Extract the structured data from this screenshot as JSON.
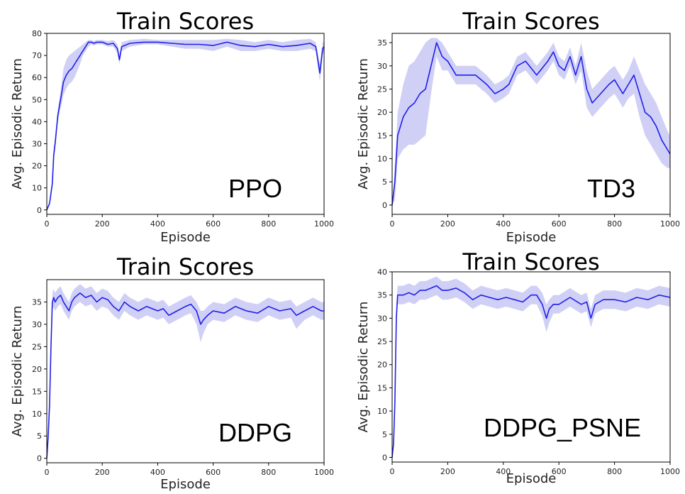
{
  "chart_data": [
    {
      "type": "line",
      "title": "Train Scores",
      "xlabel": "Episode",
      "ylabel": "Avg. Episodic Return",
      "annotation": "PPO",
      "xlim": [
        0,
        1000
      ],
      "ylim": [
        -2,
        80
      ],
      "xticks": [
        0,
        200,
        400,
        600,
        800,
        1000
      ],
      "yticks": [
        0,
        10,
        20,
        30,
        40,
        50,
        60,
        70,
        80
      ],
      "line_color": "#1f1fe8",
      "band_color": "#c8c8f4",
      "series": [
        {
          "x": [
            0,
            10,
            20,
            25,
            30,
            40,
            50,
            60,
            70,
            80,
            90,
            100,
            110,
            120,
            130,
            140,
            150,
            160,
            170,
            180,
            200,
            220,
            240,
            255,
            262,
            270,
            300,
            350,
            400,
            450,
            500,
            550,
            600,
            650,
            700,
            750,
            800,
            850,
            900,
            950,
            970,
            985,
            995,
            1000
          ],
          "values": [
            0,
            3,
            12,
            25,
            30,
            43,
            50,
            58,
            61,
            63,
            64,
            66,
            68,
            70,
            72,
            74,
            76,
            76,
            75.5,
            76,
            76,
            75,
            75.5,
            73,
            68,
            74,
            75.5,
            76,
            76,
            75.5,
            75,
            75,
            74.5,
            76,
            74.5,
            74,
            75,
            74,
            74.5,
            75.5,
            74,
            62,
            73,
            74
          ],
          "lower": [
            0,
            2,
            10,
            22,
            27,
            40,
            46,
            52,
            55,
            57,
            58,
            60,
            63,
            66,
            70,
            72,
            74,
            75,
            74.5,
            75,
            75,
            74,
            74,
            71,
            66,
            72,
            74,
            75,
            75,
            74,
            73,
            73,
            72,
            74,
            72,
            72,
            73,
            72,
            72,
            73,
            72,
            58,
            70,
            72
          ],
          "upper": [
            0,
            4,
            14,
            28,
            33,
            46,
            54,
            64,
            68,
            70,
            71,
            72,
            73,
            74,
            75,
            76,
            77,
            77,
            76.5,
            77,
            77,
            76.5,
            77,
            75,
            70,
            76,
            77,
            77.5,
            77,
            77,
            77,
            77,
            77,
            77.5,
            77,
            76,
            77,
            76,
            77,
            77.5,
            76,
            66,
            76,
            76
          ]
        }
      ]
    },
    {
      "type": "line",
      "title": "Train Scores",
      "xlabel": "Episode",
      "ylabel": "Avg. Episodic Return",
      "annotation": "TD3",
      "xlim": [
        0,
        1000
      ],
      "ylim": [
        -2,
        37
      ],
      "xticks": [
        0,
        200,
        400,
        600,
        800,
        1000
      ],
      "yticks": [
        0,
        5,
        10,
        15,
        20,
        25,
        30,
        35
      ],
      "line_color": "#1f1fe8",
      "band_color": "#c8c8f4",
      "series": [
        {
          "x": [
            0,
            10,
            20,
            40,
            60,
            80,
            100,
            120,
            140,
            160,
            180,
            200,
            230,
            260,
            300,
            340,
            370,
            400,
            420,
            450,
            480,
            520,
            560,
            580,
            600,
            620,
            640,
            660,
            680,
            700,
            720,
            750,
            780,
            800,
            830,
            850,
            870,
            890,
            910,
            930,
            950,
            970,
            990,
            1000
          ],
          "values": [
            0,
            5,
            15,
            19,
            21,
            22,
            24,
            25,
            30,
            35,
            32,
            31,
            28,
            28,
            28,
            26,
            24,
            25,
            26,
            30,
            31,
            28,
            31,
            33,
            30,
            29,
            32,
            28,
            32,
            25,
            22,
            24,
            26,
            27,
            24,
            26,
            28,
            24,
            20,
            19,
            17,
            14,
            12,
            11
          ],
          "lower": [
            0,
            1,
            10,
            12,
            13,
            13,
            14,
            15,
            24,
            32,
            29,
            29,
            26,
            26,
            26,
            24,
            22,
            23,
            24,
            28,
            29,
            26,
            29,
            31,
            28,
            27,
            30,
            26,
            29,
            21,
            19,
            21,
            23,
            24,
            21,
            23,
            24,
            19,
            15,
            13,
            11,
            9,
            8,
            8
          ],
          "upper": [
            0,
            9,
            20,
            26,
            30,
            31,
            33,
            35,
            36,
            36,
            35,
            33,
            30,
            30,
            30,
            28,
            26,
            27,
            28,
            32,
            33,
            30,
            33,
            35,
            32,
            31,
            34,
            30,
            35,
            29,
            25,
            27,
            29,
            30,
            27,
            29,
            32,
            29,
            26,
            24,
            22,
            19,
            16,
            15
          ]
        }
      ]
    },
    {
      "type": "line",
      "title": "Train Scores",
      "xlabel": "Episode",
      "ylabel": "Avg. Episodic Return",
      "annotation": "DDPG",
      "xlim": [
        0,
        1000
      ],
      "ylim": [
        -1,
        40
      ],
      "xticks": [
        0,
        200,
        400,
        600,
        800,
        1000
      ],
      "yticks": [
        0,
        5,
        10,
        15,
        20,
        25,
        30,
        35
      ],
      "line_color": "#1f1fe8",
      "band_color": "#c8c8f4",
      "series": [
        {
          "x": [
            0,
            5,
            10,
            15,
            20,
            25,
            30,
            40,
            50,
            60,
            70,
            80,
            90,
            100,
            120,
            140,
            160,
            180,
            200,
            220,
            240,
            260,
            280,
            300,
            330,
            360,
            400,
            420,
            440,
            470,
            500,
            520,
            540,
            555,
            565,
            580,
            600,
            640,
            680,
            720,
            760,
            800,
            840,
            880,
            900,
            930,
            960,
            990,
            1000
          ],
          "values": [
            0,
            5,
            12,
            25,
            35,
            36,
            35,
            36,
            36.5,
            35,
            34,
            33,
            35,
            36,
            37,
            36,
            36.5,
            35,
            36,
            35.5,
            34,
            33,
            35,
            34,
            33,
            34,
            33,
            33.5,
            32,
            33,
            34,
            34.5,
            33,
            30,
            31,
            32,
            33,
            32.5,
            34,
            33,
            32.5,
            34,
            33,
            33.5,
            32,
            33,
            34,
            33,
            33
          ],
          "lower": [
            0,
            4,
            10,
            22,
            33,
            34,
            33,
            34,
            34.5,
            33,
            32,
            31,
            33,
            34,
            35,
            34,
            34.5,
            33,
            34,
            33.5,
            32,
            31,
            33,
            32,
            31,
            32,
            31,
            31.5,
            30,
            31,
            32,
            32.5,
            30,
            26,
            28,
            30,
            31,
            30.5,
            32,
            31,
            30.5,
            32,
            31,
            31.5,
            29,
            31,
            32,
            31,
            31
          ],
          "upper": [
            0,
            6,
            14,
            28,
            37,
            38,
            37,
            38,
            38.5,
            37,
            36,
            35,
            37,
            38,
            39,
            38,
            38.5,
            37,
            38,
            37.5,
            36,
            35,
            37,
            36,
            35,
            36,
            35,
            35.5,
            34,
            35,
            36,
            36.5,
            35,
            33,
            33,
            34,
            35,
            34.5,
            36,
            35,
            34.5,
            36,
            35,
            35.5,
            34,
            35,
            36,
            35,
            35
          ]
        }
      ]
    },
    {
      "type": "line",
      "title": "Train Scores",
      "xlabel": "Episode",
      "ylabel": "Avg. Episodic Return",
      "annotation": "DDPG_PSNE",
      "xlim": [
        0,
        1000
      ],
      "ylim": [
        -1,
        40
      ],
      "xticks": [
        0,
        200,
        400,
        600,
        800,
        1000
      ],
      "yticks": [
        0,
        5,
        10,
        15,
        20,
        25,
        30,
        35,
        40
      ],
      "line_color": "#1f1fe8",
      "band_color": "#c8c8f4",
      "series": [
        {
          "x": [
            0,
            5,
            10,
            15,
            20,
            25,
            40,
            60,
            80,
            100,
            120,
            140,
            160,
            180,
            200,
            230,
            260,
            290,
            320,
            350,
            380,
            410,
            440,
            470,
            500,
            520,
            540,
            555,
            565,
            580,
            600,
            640,
            680,
            700,
            715,
            730,
            760,
            800,
            840,
            880,
            920,
            960,
            1000
          ],
          "values": [
            0,
            3,
            12,
            30,
            35,
            35,
            35,
            35.5,
            35,
            36,
            36,
            36.5,
            37,
            36,
            36,
            36.5,
            35.5,
            34,
            35,
            34.5,
            34,
            34.5,
            34,
            33.5,
            35,
            35,
            33,
            30,
            32,
            33,
            33,
            34.5,
            33,
            33.5,
            30,
            33,
            34,
            34,
            33.5,
            34.5,
            34,
            35,
            34.5
          ],
          "lower": [
            0,
            2,
            10,
            27,
            33,
            33,
            33,
            33.5,
            33,
            34,
            34,
            34.5,
            35,
            34,
            34,
            34.5,
            33.5,
            32,
            33,
            32.5,
            32,
            32.5,
            32,
            31.5,
            33,
            33,
            30.5,
            27,
            29,
            31,
            31,
            32.5,
            31,
            31.5,
            28,
            31,
            32,
            32,
            31.5,
            32.5,
            32,
            33,
            32.5
          ],
          "upper": [
            0,
            4,
            14,
            33,
            37,
            37,
            37,
            37.5,
            37,
            38,
            38,
            38.5,
            39,
            38,
            38,
            38.5,
            37.5,
            36,
            37,
            36.5,
            36,
            36.5,
            36,
            35.5,
            37,
            37,
            35.5,
            33,
            34,
            35,
            35,
            36.5,
            35,
            35.5,
            32,
            35,
            36,
            36,
            35.5,
            36.5,
            36,
            37,
            36.5
          ]
        }
      ]
    }
  ]
}
